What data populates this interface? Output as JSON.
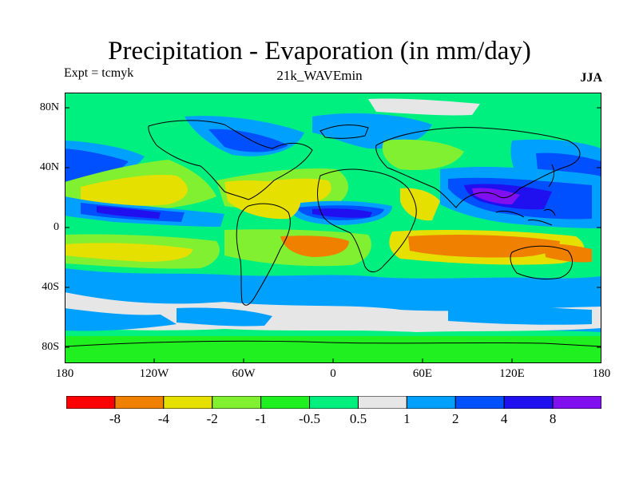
{
  "figure": {
    "title": "Precipitation - Evaporation (in mm/day)",
    "experiment": "Expt = tcmyk",
    "case_name": "21k_WAVEmin",
    "season": "JJA"
  },
  "map": {
    "projection": "cylindrical-equidistant",
    "lon_range": [
      -180,
      180
    ],
    "lat_range": [
      -90,
      90
    ],
    "lat_ticks": [
      "80N",
      "40N",
      "0",
      "40S",
      "80S"
    ],
    "lon_ticks": [
      "180",
      "120W",
      "60W",
      "0",
      "60E",
      "120E",
      "180"
    ],
    "field_description": "P-E contours; wet bands at ITCZ (blue/purple), dry subtropical bands (yellow/orange)"
  },
  "colorbar": {
    "labels": [
      "-8",
      "-4",
      "-2",
      "-1",
      "-0.5",
      "0.5",
      "1",
      "2",
      "4",
      "8"
    ],
    "colors": [
      "#ff0000",
      "#f08000",
      "#e6e000",
      "#80f030",
      "#20f020",
      "#00f080",
      "#e6e6e6",
      "#00a0ff",
      "#0050ff",
      "#2010f0",
      "#8010f0"
    ]
  }
}
